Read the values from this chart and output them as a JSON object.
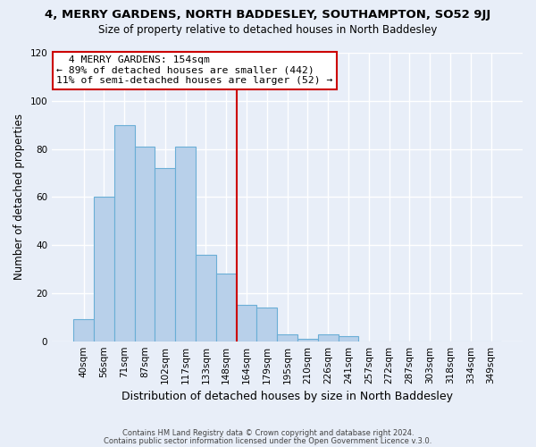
{
  "title": "4, MERRY GARDENS, NORTH BADDESLEY, SOUTHAMPTON, SO52 9JJ",
  "subtitle": "Size of property relative to detached houses in North Baddesley",
  "bar_labels": [
    "40sqm",
    "56sqm",
    "71sqm",
    "87sqm",
    "102sqm",
    "117sqm",
    "133sqm",
    "148sqm",
    "164sqm",
    "179sqm",
    "195sqm",
    "210sqm",
    "226sqm",
    "241sqm",
    "257sqm",
    "272sqm",
    "287sqm",
    "303sqm",
    "318sqm",
    "334sqm",
    "349sqm"
  ],
  "bar_values": [
    9,
    60,
    90,
    81,
    72,
    81,
    36,
    28,
    15,
    14,
    3,
    1,
    3,
    2,
    0,
    0,
    0,
    0,
    0,
    0,
    0
  ],
  "bar_color": "#b8d0ea",
  "bar_edge_color": "#6aaed6",
  "vline_color": "#cc0000",
  "ylabel": "Number of detached properties",
  "xlabel": "Distribution of detached houses by size in North Baddesley",
  "ylim": [
    0,
    120
  ],
  "yticks": [
    0,
    20,
    40,
    60,
    80,
    100,
    120
  ],
  "annotation_title": "4 MERRY GARDENS: 154sqm",
  "annotation_line1": "← 89% of detached houses are smaller (442)",
  "annotation_line2": "11% of semi-detached houses are larger (52) →",
  "annotation_box_color": "#ffffff",
  "annotation_box_edge_color": "#cc0000",
  "footer1": "Contains HM Land Registry data © Crown copyright and database right 2024.",
  "footer2": "Contains public sector information licensed under the Open Government Licence v.3.0.",
  "bg_color": "#e8eef8",
  "plot_bg_color": "#e8eef8"
}
